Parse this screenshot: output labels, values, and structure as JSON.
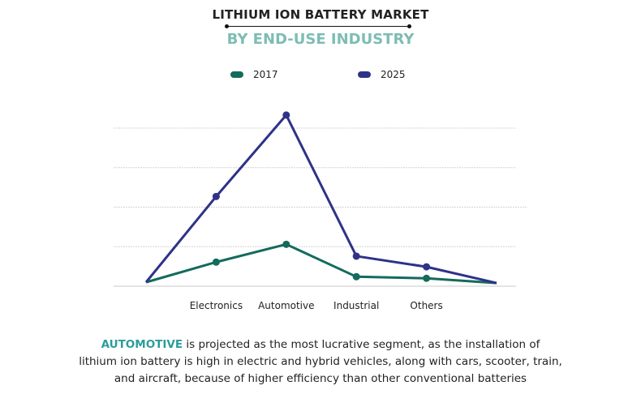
{
  "header": {
    "title": "LITHIUM ION BATTERY MARKET",
    "subtitle": "BY END-USE INDUSTRY"
  },
  "chart_data": {
    "type": "line",
    "title": "LITHIUM ION BATTERY MARKET",
    "subtitle": "BY END-USE INDUSTRY",
    "categories": [
      "",
      "Electronics",
      "Automotive",
      "Industrial",
      "Others",
      ""
    ],
    "series": [
      {
        "name": "2017",
        "color": "#136b5c",
        "values": [
          0.1,
          0.61,
          1.06,
          0.24,
          0.2,
          0.08
        ]
      },
      {
        "name": "2025",
        "color": "#2e3288",
        "values": [
          0.1,
          2.27,
          4.33,
          0.76,
          0.49,
          0.08
        ]
      }
    ],
    "ylim": [
      0,
      4
    ],
    "y_ticks_labeled": false,
    "grid": true,
    "legend_placement": "top"
  },
  "caption": {
    "highlight": "AUTOMOTIVE",
    "highlight_color": "#2a9d9a",
    "line1": " is projected as the most lucrative segment, as the installation of",
    "line2": "lithium ion battery is high in electric and hybrid vehicles, along with cars, scooter, train,",
    "line3": "and aircraft, because of higher efficiency than other conventional batteries"
  }
}
